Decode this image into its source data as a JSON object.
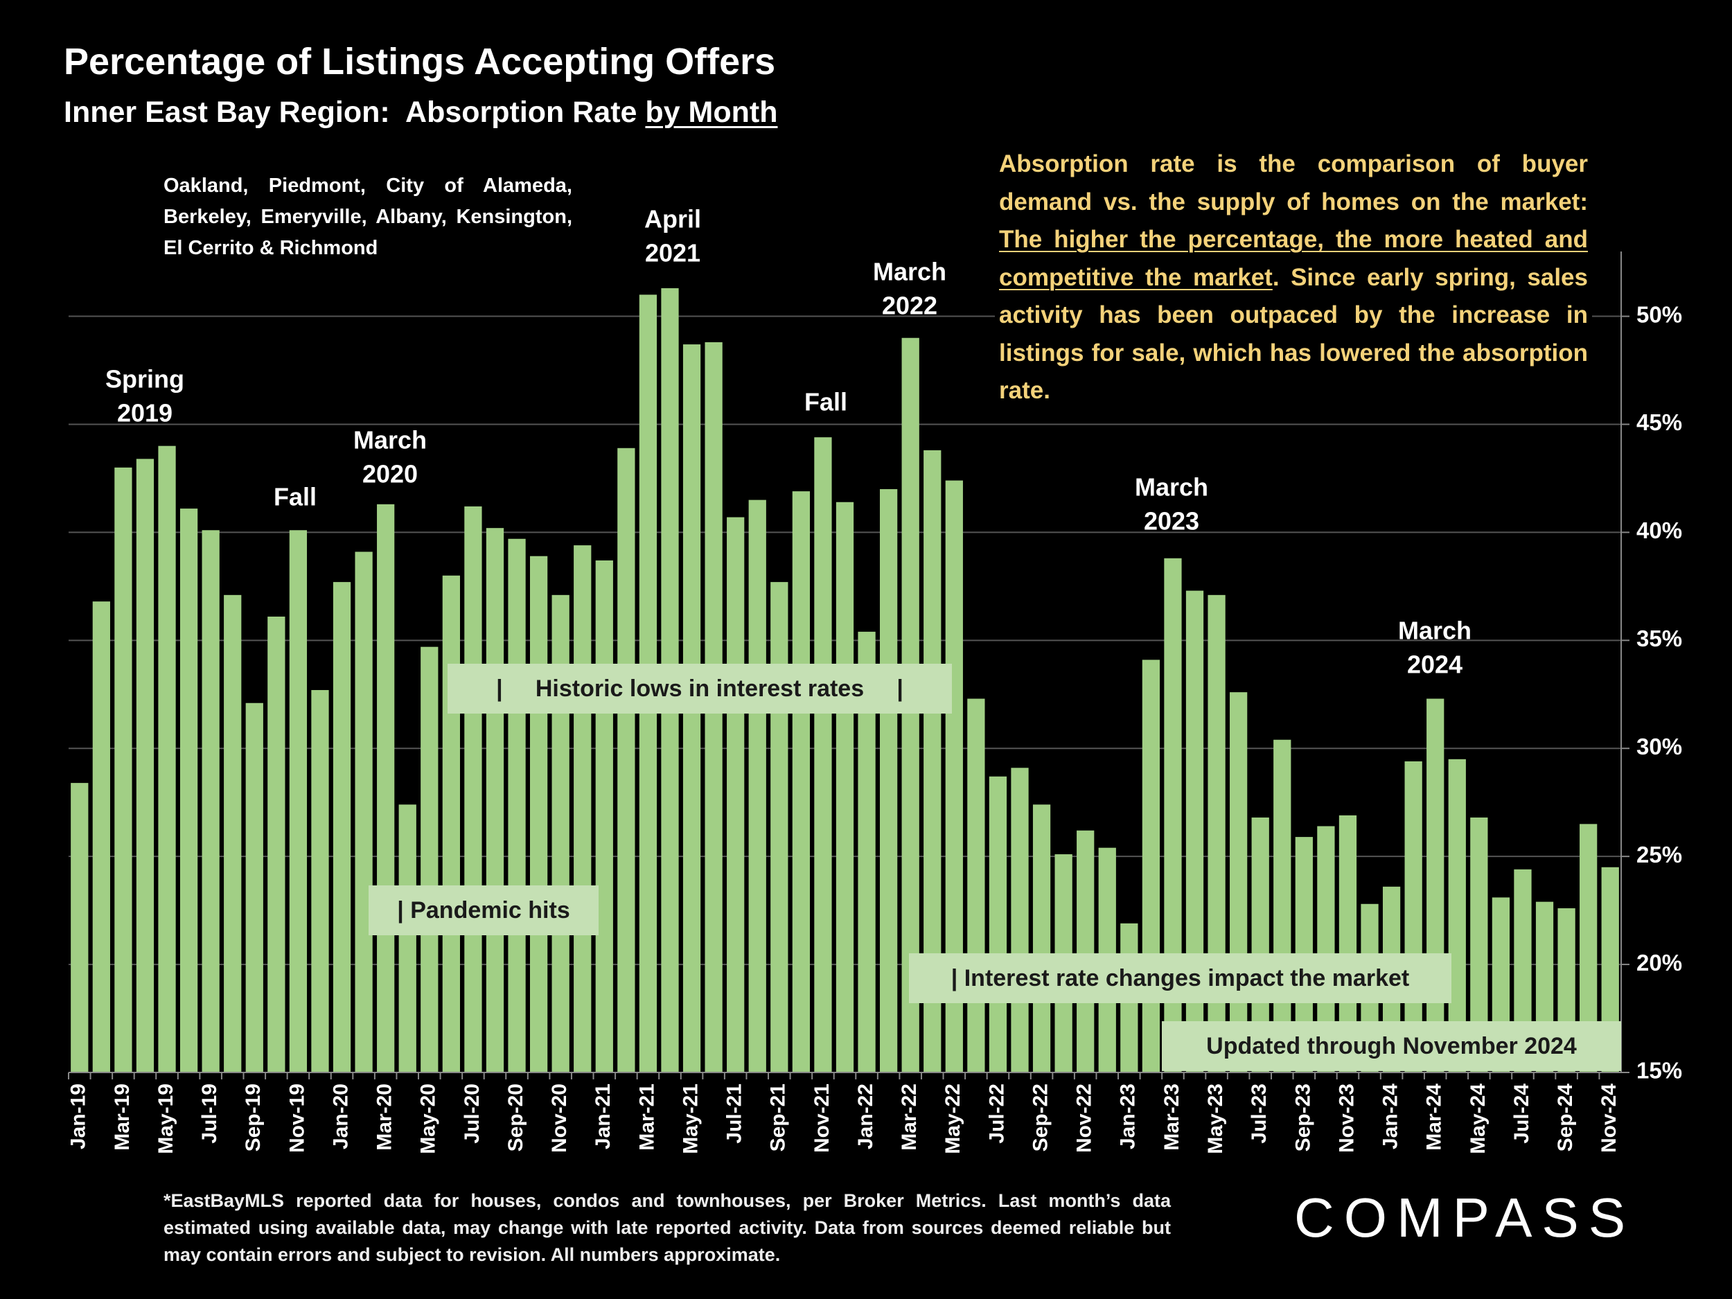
{
  "title": "Percentage of Listings Accepting Offers",
  "subtitle": [
    "Inner East Bay Region:  Absorption Rate",
    "by Month"
  ],
  "region_note": "Oakland, Piedmont, City of Alameda, Berkeley, Emeryville, Albany, Kensington, El Cerrito & Richmond",
  "description": [
    "Absorption rate is the comparison of buyer demand vs. the supply of homes on the market:",
    "The higher the percentage, the more heated and competitive the market",
    ". Since early spring, sales activity has been outpaced by the increase in listings for sale, which has lowered the absorption rate."
  ],
  "annotations": [
    [
      "Spring",
      "2019"
    ],
    [
      "Fall"
    ],
    [
      "March",
      "2020"
    ],
    [
      "April",
      "2021"
    ],
    [
      "Fall"
    ],
    [
      "March",
      "2022"
    ],
    [
      "March",
      "2023"
    ],
    [
      "March",
      "2024"
    ]
  ],
  "period_labels": [
    "|     Historic lows in interest rates     |",
    "| Pandemic hits",
    "| Interest rate changes impact the market",
    "Updated through November 2024"
  ],
  "footnote": "*EastBayMLS reported data for houses, condos and townhouses, per Broker Metrics. Last month’s data estimated using available data, may change with late reported activity. Data from sources deemed reliable but may contain errors and subject to revision. All numbers approximate.",
  "logo": "COMPASS",
  "chart_data": {
    "type": "bar",
    "categories": [
      "Jan-19",
      null,
      "Mar-19",
      null,
      "May-19",
      null,
      "Jul-19",
      null,
      "Sep-19",
      null,
      "Nov-19",
      null,
      "Jan-20",
      null,
      "Mar-20",
      null,
      "May-20",
      null,
      "Jul-20",
      null,
      "Sep-20",
      null,
      "Nov-20",
      null,
      "Jan-21",
      null,
      "Mar-21",
      null,
      "May-21",
      null,
      "Jul-21",
      null,
      "Sep-21",
      null,
      "Nov-21",
      null,
      "Jan-22",
      null,
      "Mar-22",
      null,
      "May-22",
      null,
      "Jul-22",
      null,
      "Sep-22",
      null,
      "Nov-22",
      null,
      "Jan-23",
      null,
      "Mar-23",
      null,
      "May-23",
      null,
      "Jul-23",
      null,
      "Sep-23",
      null,
      "Nov-23",
      null,
      "Jan-24",
      null,
      "Mar-24",
      null,
      "May-24",
      null,
      "Jul-24",
      null,
      "Sep-24",
      null,
      "Nov-24"
    ],
    "values": [
      28.4,
      36.8,
      43.0,
      43.4,
      44.0,
      41.1,
      40.1,
      37.1,
      32.1,
      36.1,
      40.1,
      32.7,
      37.7,
      39.1,
      41.3,
      27.4,
      34.7,
      38.0,
      41.2,
      40.2,
      39.7,
      38.9,
      37.1,
      39.4,
      38.7,
      43.9,
      51.0,
      51.3,
      48.7,
      48.8,
      40.7,
      41.5,
      37.7,
      41.9,
      44.4,
      41.4,
      35.4,
      42.0,
      49.0,
      43.8,
      42.4,
      32.3,
      28.7,
      29.1,
      27.4,
      25.1,
      26.2,
      25.4,
      21.9,
      34.1,
      38.8,
      37.3,
      37.1,
      32.6,
      26.8,
      30.4,
      25.9,
      26.4,
      26.9,
      22.8,
      23.6,
      29.4,
      32.3,
      29.5,
      26.8,
      23.1,
      24.4,
      22.9,
      22.6,
      26.5,
      24.5
    ],
    "color": "#a1cf85",
    "ylim": [
      15,
      53
    ],
    "yticks": [
      {
        "value": 15,
        "label": "15%"
      },
      {
        "value": 20,
        "label": "20%"
      },
      {
        "value": 25,
        "label": "25%"
      },
      {
        "value": 30,
        "label": "30%"
      },
      {
        "value": 35,
        "label": "35%"
      },
      {
        "value": 40,
        "label": "40%"
      },
      {
        "value": 45,
        "label": "45%"
      },
      {
        "value": 50,
        "label": "50%"
      }
    ],
    "grid": true,
    "y_axis_side": "right"
  }
}
